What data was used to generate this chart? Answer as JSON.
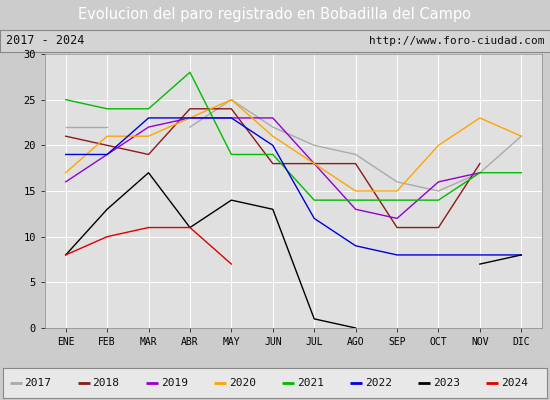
{
  "title": "Evolucion del paro registrado en Bobadilla del Campo",
  "subtitle_left": "2017 - 2024",
  "subtitle_right": "http://www.foro-ciudad.com",
  "months": [
    "ENE",
    "FEB",
    "MAR",
    "ABR",
    "MAY",
    "JUN",
    "JUL",
    "AGO",
    "SEP",
    "OCT",
    "NOV",
    "DIC"
  ],
  "ylim": [
    0,
    30
  ],
  "yticks": [
    0,
    5,
    10,
    15,
    20,
    25,
    30
  ],
  "series": {
    "2017": {
      "color": "#aaaaaa",
      "data": [
        22,
        22,
        null,
        22,
        25,
        22,
        20,
        19,
        16,
        15,
        17,
        21
      ]
    },
    "2018": {
      "color": "#8b1a1a",
      "data": [
        21,
        20,
        19,
        24,
        24,
        18,
        18,
        18,
        11,
        11,
        18,
        null
      ]
    },
    "2019": {
      "color": "#9400d3",
      "data": [
        16,
        19,
        22,
        23,
        23,
        23,
        18,
        13,
        12,
        16,
        17,
        null
      ]
    },
    "2020": {
      "color": "#ffa500",
      "data": [
        17,
        21,
        21,
        23,
        25,
        21,
        18,
        15,
        15,
        20,
        23,
        21
      ]
    },
    "2021": {
      "color": "#00bb00",
      "data": [
        25,
        24,
        24,
        28,
        19,
        19,
        14,
        14,
        14,
        14,
        17,
        17
      ]
    },
    "2022": {
      "color": "#0000dd",
      "data": [
        19,
        19,
        23,
        23,
        23,
        20,
        12,
        9,
        8,
        8,
        8,
        8
      ]
    },
    "2023": {
      "color": "#000000",
      "data": [
        8,
        13,
        17,
        11,
        14,
        13,
        1,
        0,
        null,
        null,
        7,
        8
      ]
    },
    "2024": {
      "color": "#dd0000",
      "data": [
        8,
        10,
        11,
        11,
        7,
        null,
        null,
        null,
        null,
        null,
        null,
        null
      ]
    }
  },
  "title_bg": "#4477cc",
  "title_color": "white",
  "subtitle_bg": "#d4d4d4",
  "subtitle_color": "#111111",
  "plot_bg": "#e0e0e0",
  "legend_bg": "#e8e8e8"
}
